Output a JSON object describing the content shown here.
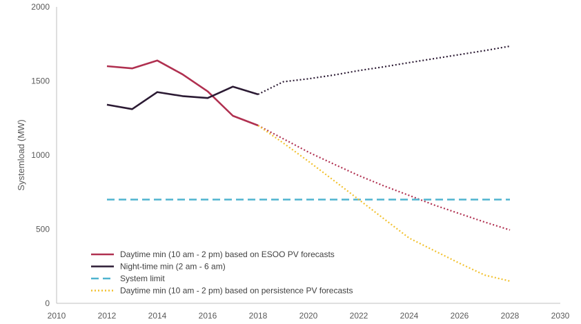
{
  "chart_data": {
    "type": "line",
    "title": "",
    "xlabel": "",
    "ylabel": "Systemload (MW)",
    "xlim": [
      2010,
      2030
    ],
    "ylim": [
      0,
      2000
    ],
    "x_ticks": [
      "2010",
      "2012",
      "2014",
      "2016",
      "2018",
      "2020",
      "2022",
      "2024",
      "2026",
      "2028",
      "2030"
    ],
    "y_ticks": [
      "0",
      "500",
      "1000",
      "1500",
      "2000"
    ],
    "grid": false,
    "legend_position": "bottom-left",
    "series": [
      {
        "name": "Daytime min (10 am - 2 pm) based on ESOO PV forecasts",
        "color": "#B03050",
        "style": "solid",
        "points": [
          [
            2012,
            1600
          ],
          [
            2013,
            1585
          ],
          [
            2014,
            1638
          ],
          [
            2015,
            1545
          ],
          [
            2016,
            1430
          ],
          [
            2017,
            1265
          ],
          [
            2018,
            1200
          ]
        ]
      },
      {
        "name": "Daytime min (10 am - 2 pm) based on ESOO PV forecasts",
        "color": "#B03050",
        "style": "dotted",
        "in_legend": false,
        "points": [
          [
            2018,
            1200
          ],
          [
            2019,
            1110
          ],
          [
            2020,
            1020
          ],
          [
            2021,
            940
          ],
          [
            2022,
            862
          ],
          [
            2023,
            792
          ],
          [
            2024,
            728
          ],
          [
            2025,
            663
          ],
          [
            2026,
            605
          ],
          [
            2027,
            548
          ],
          [
            2028,
            495
          ]
        ]
      },
      {
        "name": "Night-time min (2 am - 6 am)",
        "color": "#2B1A33",
        "style": "solid",
        "points": [
          [
            2012,
            1340
          ],
          [
            2013,
            1310
          ],
          [
            2014,
            1425
          ],
          [
            2015,
            1398
          ],
          [
            2016,
            1385
          ],
          [
            2017,
            1462
          ],
          [
            2018,
            1410
          ]
        ]
      },
      {
        "name": "Night-time min (2 am - 6 am)",
        "color": "#2B1A33",
        "style": "dotted",
        "in_legend": false,
        "points": [
          [
            2018,
            1410
          ],
          [
            2019,
            1495
          ],
          [
            2020,
            1515
          ],
          [
            2021,
            1540
          ],
          [
            2022,
            1570
          ],
          [
            2023,
            1596
          ],
          [
            2024,
            1624
          ],
          [
            2025,
            1651
          ],
          [
            2026,
            1678
          ],
          [
            2027,
            1705
          ],
          [
            2028,
            1735
          ]
        ]
      },
      {
        "name": "System limit",
        "color": "#4FB3CF",
        "style": "dashed",
        "points": [
          [
            2012,
            700
          ],
          [
            2028,
            700
          ]
        ]
      },
      {
        "name": "Daytime min (10 am - 2 pm) based on persistence PV forecasts",
        "color": "#F2C12E",
        "style": "dotted",
        "points": [
          [
            2018,
            1200
          ],
          [
            2019,
            1082
          ],
          [
            2020,
            958
          ],
          [
            2021,
            830
          ],
          [
            2022,
            700
          ],
          [
            2023,
            570
          ],
          [
            2024,
            440
          ],
          [
            2025,
            355
          ],
          [
            2026,
            270
          ],
          [
            2027,
            190
          ],
          [
            2028,
            150
          ]
        ]
      }
    ]
  }
}
